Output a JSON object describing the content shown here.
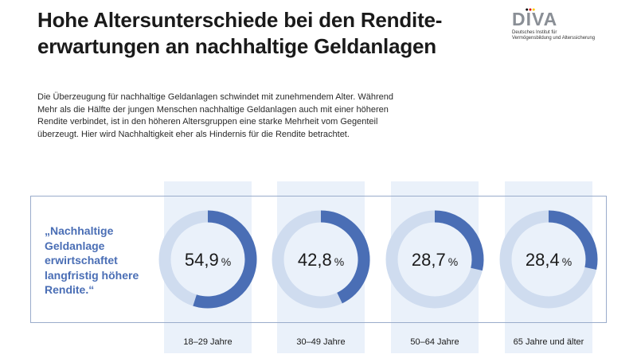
{
  "title": {
    "line1": "Hohe Altersunterschiede bei den Rendite-",
    "line2": "erwartungen an nachhaltige Geldanlagen"
  },
  "logo": {
    "letter_d": "D",
    "letter_i": "I",
    "letters_va": "VA",
    "sub_line1": "Deutsches Institut für",
    "sub_line2": "Vermögensbildung und Alterssicherung",
    "colors": {
      "grey": "#8a8f96",
      "black": "#000000",
      "red": "#dd0000",
      "gold": "#ffcc00"
    }
  },
  "intro": {
    "line1": "Die Überzeugung für nachhaltige Geldanlagen schwindet mit zunehmendem Alter. Während",
    "line2": "Mehr als die Hälfte der jungen Menschen nachhaltige Geldanlagen auch mit einer höheren",
    "line3": "Rendite verbindet, ist in den höheren Altersgruppen eine starke Mehrheit vom Gegenteil",
    "line4": "überzeugt. Hier wird Nachhaltigkeit eher als Hindernis für die Rendite betrachtet."
  },
  "quote": {
    "line1": "„Nachhaltige",
    "line2": "Geldanlage",
    "line3": "erwirtschaftet",
    "line4": "langfristig höhere",
    "line5": "Rendite.“"
  },
  "chart_data": {
    "type": "pie",
    "style": "donut",
    "title": "„Nachhaltige Geldanlage erwirtschaftet langfristig höhere Rendite.“",
    "categories": [
      "18–29 Jahre",
      "30–49 Jahre",
      "50–64 Jahre",
      "65 Jahre und älter"
    ],
    "values": [
      54.9,
      42.8,
      28.7,
      28.4
    ],
    "value_labels": [
      "54,9",
      "42,8",
      "28,7",
      "28,4"
    ],
    "unit": "%",
    "max": 100,
    "colors": {
      "value": "#4a6eb5",
      "track": "#cfdcef",
      "band": "#eaf1fa",
      "frame": "#9aaccb",
      "text": "#1a1a1a"
    }
  }
}
